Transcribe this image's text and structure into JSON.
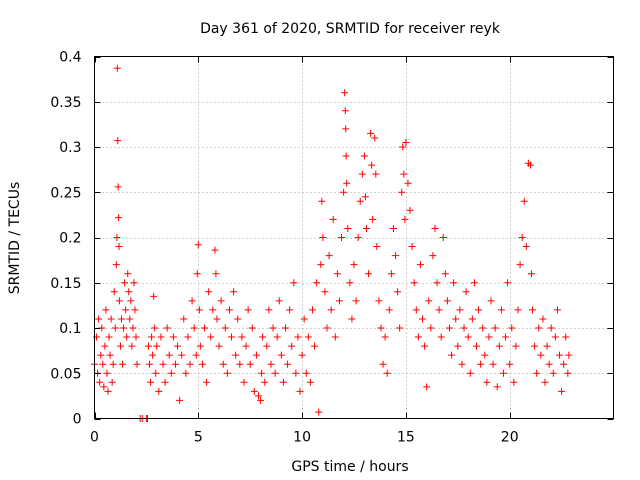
{
  "chart_data": {
    "type": "scatter",
    "title": "Day 361 of 2020, SRMTID for receiver reyk",
    "xlabel": "GPS time / hours",
    "ylabel": "SRMTID / TECUs",
    "xlim": [
      0,
      25
    ],
    "ylim": [
      0,
      0.4
    ],
    "x_ticks": [
      0,
      5,
      10,
      15,
      20
    ],
    "x_tick_labels": [
      "0",
      "5",
      "10",
      "15",
      "20"
    ],
    "y_ticks": [
      0,
      0.05,
      0.1,
      0.15,
      0.2,
      0.25,
      0.3,
      0.35,
      0.4
    ],
    "y_tick_labels": [
      "0",
      "0.05",
      "0.1",
      "0.15",
      "0.2",
      "0.25",
      "0.3",
      "0.35",
      "0.4"
    ],
    "grid": true,
    "marker": "+",
    "color": "#ff0000",
    "series": [
      {
        "name": "SRMTID",
        "points": [
          [
            0.0,
            0.06
          ],
          [
            0.1,
            0.09
          ],
          [
            0.15,
            0.05
          ],
          [
            0.2,
            0.11
          ],
          [
            0.25,
            0.04
          ],
          [
            0.3,
            0.07
          ],
          [
            0.35,
            0.1
          ],
          [
            0.4,
            0.06
          ],
          [
            0.45,
            0.035
          ],
          [
            0.5,
            0.08
          ],
          [
            0.55,
            0.12
          ],
          [
            0.6,
            0.05
          ],
          [
            0.65,
            0.03
          ],
          [
            0.7,
            0.09
          ],
          [
            0.75,
            0.07
          ],
          [
            0.8,
            0.11
          ],
          [
            0.85,
            0.04
          ],
          [
            0.9,
            0.06
          ],
          [
            0.95,
            0.14
          ],
          [
            1.0,
            0.1
          ],
          [
            1.05,
            0.17
          ],
          [
            1.08,
            0.2
          ],
          [
            1.1,
            0.387
          ],
          [
            1.12,
            0.307
          ],
          [
            1.14,
            0.256
          ],
          [
            1.16,
            0.222
          ],
          [
            1.18,
            0.19
          ],
          [
            1.2,
            0.13
          ],
          [
            1.25,
            0.08
          ],
          [
            1.3,
            0.11
          ],
          [
            1.35,
            0.06
          ],
          [
            1.4,
            0.1
          ],
          [
            1.45,
            0.15
          ],
          [
            1.5,
            0.12
          ],
          [
            1.55,
            0.09
          ],
          [
            1.6,
            0.16
          ],
          [
            1.65,
            0.14
          ],
          [
            1.7,
            0.11
          ],
          [
            1.75,
            0.13
          ],
          [
            1.8,
            0.08
          ],
          [
            1.85,
            0.1
          ],
          [
            1.9,
            0.15
          ],
          [
            1.95,
            0.12
          ],
          [
            2.0,
            0.09
          ],
          [
            2.05,
            0.06
          ],
          [
            2.2,
            0.0
          ],
          [
            2.3,
            0.0
          ],
          [
            2.5,
            0.0
          ],
          [
            2.55,
            0.0
          ],
          [
            2.6,
            0.08
          ],
          [
            2.65,
            0.06
          ],
          [
            2.7,
            0.04
          ],
          [
            2.75,
            0.09
          ],
          [
            2.8,
            0.07
          ],
          [
            2.85,
            0.135
          ],
          [
            2.9,
            0.1
          ],
          [
            2.95,
            0.05
          ],
          [
            3.0,
            0.08
          ],
          [
            3.1,
            0.03
          ],
          [
            3.2,
            0.09
          ],
          [
            3.3,
            0.06
          ],
          [
            3.4,
            0.04
          ],
          [
            3.5,
            0.1
          ],
          [
            3.6,
            0.07
          ],
          [
            3.7,
            0.05
          ],
          [
            3.8,
            0.09
          ],
          [
            3.9,
            0.06
          ],
          [
            4.0,
            0.08
          ],
          [
            4.1,
            0.02
          ],
          [
            4.2,
            0.07
          ],
          [
            4.3,
            0.11
          ],
          [
            4.4,
            0.05
          ],
          [
            4.5,
            0.09
          ],
          [
            4.6,
            0.06
          ],
          [
            4.7,
            0.13
          ],
          [
            4.8,
            0.1
          ],
          [
            4.9,
            0.07
          ],
          [
            4.95,
            0.16
          ],
          [
            5.0,
            0.192
          ],
          [
            5.05,
            0.12
          ],
          [
            5.1,
            0.08
          ],
          [
            5.2,
            0.06
          ],
          [
            5.3,
            0.1
          ],
          [
            5.4,
            0.04
          ],
          [
            5.5,
            0.14
          ],
          [
            5.6,
            0.09
          ],
          [
            5.7,
            0.12
          ],
          [
            5.8,
            0.186
          ],
          [
            5.85,
            0.16
          ],
          [
            5.9,
            0.11
          ],
          [
            6.0,
            0.08
          ],
          [
            6.1,
            0.13
          ],
          [
            6.2,
            0.06
          ],
          [
            6.3,
            0.1
          ],
          [
            6.4,
            0.05
          ],
          [
            6.5,
            0.12
          ],
          [
            6.6,
            0.09
          ],
          [
            6.7,
            0.14
          ],
          [
            6.8,
            0.07
          ],
          [
            6.9,
            0.11
          ],
          [
            7.0,
            0.06
          ],
          [
            7.1,
            0.09
          ],
          [
            7.2,
            0.04
          ],
          [
            7.3,
            0.08
          ],
          [
            7.4,
            0.12
          ],
          [
            7.5,
            0.06
          ],
          [
            7.6,
            0.1
          ],
          [
            7.7,
            0.03
          ],
          [
            7.8,
            0.07
          ],
          [
            7.9,
            0.025
          ],
          [
            8.0,
            0.02
          ],
          [
            8.05,
            0.05
          ],
          [
            8.1,
            0.09
          ],
          [
            8.2,
            0.04
          ],
          [
            8.3,
            0.08
          ],
          [
            8.4,
            0.12
          ],
          [
            8.5,
            0.06
          ],
          [
            8.6,
            0.1
          ],
          [
            8.7,
            0.05
          ],
          [
            8.8,
            0.09
          ],
          [
            8.9,
            0.13
          ],
          [
            9.0,
            0.07
          ],
          [
            9.1,
            0.04
          ],
          [
            9.2,
            0.1
          ],
          [
            9.3,
            0.06
          ],
          [
            9.4,
            0.12
          ],
          [
            9.5,
            0.08
          ],
          [
            9.6,
            0.15
          ],
          [
            9.7,
            0.05
          ],
          [
            9.8,
            0.09
          ],
          [
            9.9,
            0.03
          ],
          [
            10.0,
            0.07
          ],
          [
            10.1,
            0.11
          ],
          [
            10.2,
            0.05
          ],
          [
            10.3,
            0.09
          ],
          [
            10.4,
            0.04
          ],
          [
            10.5,
            0.12
          ],
          [
            10.6,
            0.08
          ],
          [
            10.7,
            0.15
          ],
          [
            10.8,
            0.007
          ],
          [
            10.9,
            0.17
          ],
          [
            10.95,
            0.24
          ],
          [
            11.0,
            0.2
          ],
          [
            11.1,
            0.14
          ],
          [
            11.2,
            0.1
          ],
          [
            11.3,
            0.18
          ],
          [
            11.4,
            0.12
          ],
          [
            11.5,
            0.22
          ],
          [
            11.6,
            0.09
          ],
          [
            11.7,
            0.16
          ],
          [
            11.8,
            0.13
          ],
          [
            11.9,
            0.2
          ],
          [
            12.0,
            0.25
          ],
          [
            12.05,
            0.36
          ],
          [
            12.08,
            0.34
          ],
          [
            12.1,
            0.32
          ],
          [
            12.12,
            0.29
          ],
          [
            12.15,
            0.26
          ],
          [
            12.2,
            0.21
          ],
          [
            12.3,
            0.15
          ],
          [
            12.4,
            0.11
          ],
          [
            12.5,
            0.17
          ],
          [
            12.6,
            0.13
          ],
          [
            12.7,
            0.2
          ],
          [
            12.8,
            0.24
          ],
          [
            12.9,
            0.27
          ],
          [
            13.0,
            0.29
          ],
          [
            13.05,
            0.245
          ],
          [
            13.1,
            0.21
          ],
          [
            13.2,
            0.16
          ],
          [
            13.3,
            0.315
          ],
          [
            13.35,
            0.28
          ],
          [
            13.4,
            0.22
          ],
          [
            13.5,
            0.31
          ],
          [
            13.55,
            0.27
          ],
          [
            13.6,
            0.19
          ],
          [
            13.7,
            0.13
          ],
          [
            13.8,
            0.1
          ],
          [
            13.9,
            0.06
          ],
          [
            14.0,
            0.09
          ],
          [
            14.1,
            0.05
          ],
          [
            14.2,
            0.12
          ],
          [
            14.3,
            0.16
          ],
          [
            14.4,
            0.21
          ],
          [
            14.5,
            0.18
          ],
          [
            14.6,
            0.14
          ],
          [
            14.7,
            0.1
          ],
          [
            14.8,
            0.25
          ],
          [
            14.85,
            0.3
          ],
          [
            14.9,
            0.27
          ],
          [
            14.95,
            0.22
          ],
          [
            15.0,
            0.305
          ],
          [
            15.1,
            0.26
          ],
          [
            15.2,
            0.23
          ],
          [
            15.3,
            0.19
          ],
          [
            15.4,
            0.15
          ],
          [
            15.5,
            0.12
          ],
          [
            15.6,
            0.09
          ],
          [
            15.7,
            0.17
          ],
          [
            15.8,
            0.11
          ],
          [
            15.9,
            0.08
          ],
          [
            16.0,
            0.035
          ],
          [
            16.1,
            0.13
          ],
          [
            16.2,
            0.1
          ],
          [
            16.3,
            0.18
          ],
          [
            16.4,
            0.21
          ],
          [
            16.5,
            0.15
          ],
          [
            16.6,
            0.12
          ],
          [
            16.7,
            0.09
          ],
          [
            16.8,
            0.2
          ],
          [
            16.9,
            0.16
          ],
          [
            17.0,
            0.13
          ],
          [
            17.1,
            0.1
          ],
          [
            17.2,
            0.07
          ],
          [
            17.3,
            0.15
          ],
          [
            17.4,
            0.11
          ],
          [
            17.5,
            0.08
          ],
          [
            17.6,
            0.12
          ],
          [
            17.7,
            0.06
          ],
          [
            17.8,
            0.1
          ],
          [
            17.9,
            0.14
          ],
          [
            18.0,
            0.09
          ],
          [
            18.1,
            0.05
          ],
          [
            18.2,
            0.11
          ],
          [
            18.3,
            0.15
          ],
          [
            18.4,
            0.08
          ],
          [
            18.5,
            0.12
          ],
          [
            18.6,
            0.06
          ],
          [
            18.7,
            0.1
          ],
          [
            18.8,
            0.07
          ],
          [
            18.9,
            0.04
          ],
          [
            19.0,
            0.09
          ],
          [
            19.1,
            0.13
          ],
          [
            19.2,
            0.06
          ],
          [
            19.3,
            0.1
          ],
          [
            19.4,
            0.035
          ],
          [
            19.5,
            0.08
          ],
          [
            19.6,
            0.12
          ],
          [
            19.7,
            0.05
          ],
          [
            19.8,
            0.09
          ],
          [
            19.9,
            0.15
          ],
          [
            20.0,
            0.06
          ],
          [
            20.1,
            0.1
          ],
          [
            20.2,
            0.04
          ],
          [
            20.3,
            0.08
          ],
          [
            20.4,
            0.12
          ],
          [
            20.5,
            0.17
          ],
          [
            20.6,
            0.2
          ],
          [
            20.7,
            0.24
          ],
          [
            20.8,
            0.19
          ],
          [
            20.9,
            0.282
          ],
          [
            21.0,
            0.28
          ],
          [
            21.05,
            0.16
          ],
          [
            21.1,
            0.12
          ],
          [
            21.2,
            0.08
          ],
          [
            21.3,
            0.05
          ],
          [
            21.4,
            0.1
          ],
          [
            21.5,
            0.07
          ],
          [
            21.6,
            0.11
          ],
          [
            21.7,
            0.04
          ],
          [
            21.8,
            0.08
          ],
          [
            21.9,
            0.06
          ],
          [
            22.0,
            0.1
          ],
          [
            22.1,
            0.05
          ],
          [
            22.2,
            0.09
          ],
          [
            22.3,
            0.12
          ],
          [
            22.4,
            0.07
          ],
          [
            22.5,
            0.03
          ],
          [
            22.6,
            0.06
          ],
          [
            22.7,
            0.09
          ],
          [
            22.8,
            0.05
          ],
          [
            22.85,
            0.07
          ]
        ]
      }
    ]
  }
}
